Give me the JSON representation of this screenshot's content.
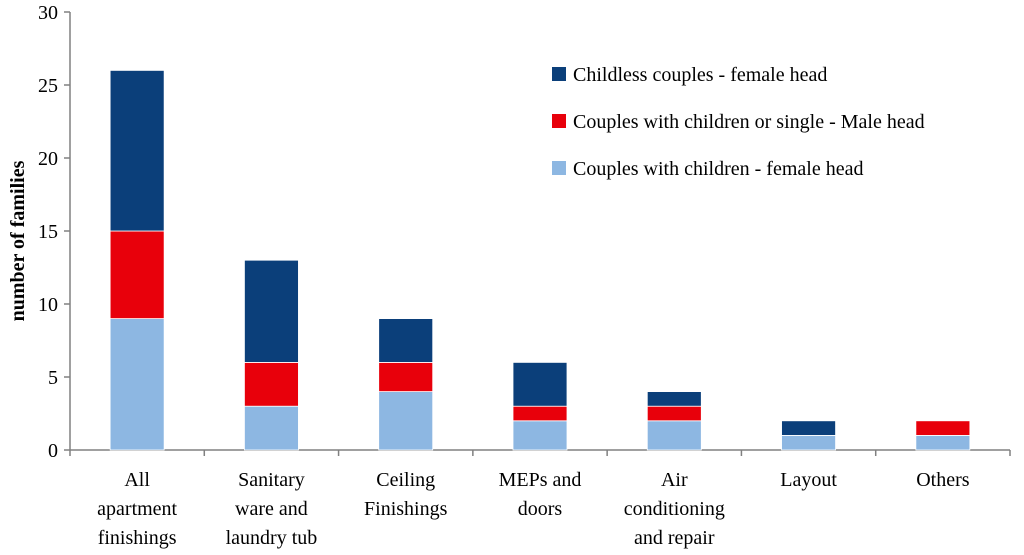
{
  "chart_data": {
    "type": "bar",
    "stacked": true,
    "xlabel": "",
    "ylabel": "number of families",
    "ylim": [
      0,
      30
    ],
    "yticks": [
      "0",
      "5",
      "10",
      "15",
      "20",
      "25",
      "30"
    ],
    "grid": false,
    "legend_position": "top-right",
    "categories": [
      [
        "All",
        "apartment",
        "finishings"
      ],
      [
        "Sanitary",
        "ware and",
        "laundry tub"
      ],
      [
        "Ceiling",
        "Finishings"
      ],
      [
        "MEPs and",
        "doors"
      ],
      [
        "Air",
        "conditioning",
        "and repair"
      ],
      [
        "Layout"
      ],
      [
        "Others"
      ]
    ],
    "series": [
      {
        "name": "Couples with children - female head",
        "color": "#8DB7E2",
        "values": [
          9,
          3,
          4,
          2,
          2,
          1,
          1
        ]
      },
      {
        "name": "Couples with children or single - Male head",
        "color": "#E8000B",
        "values": [
          6,
          3,
          2,
          1,
          1,
          0,
          1
        ]
      },
      {
        "name": "Childless couples - female head",
        "color": "#0B3F7A",
        "values": [
          11,
          7,
          3,
          3,
          1,
          1,
          0
        ]
      }
    ],
    "legend_order": [
      2,
      1,
      0
    ]
  }
}
